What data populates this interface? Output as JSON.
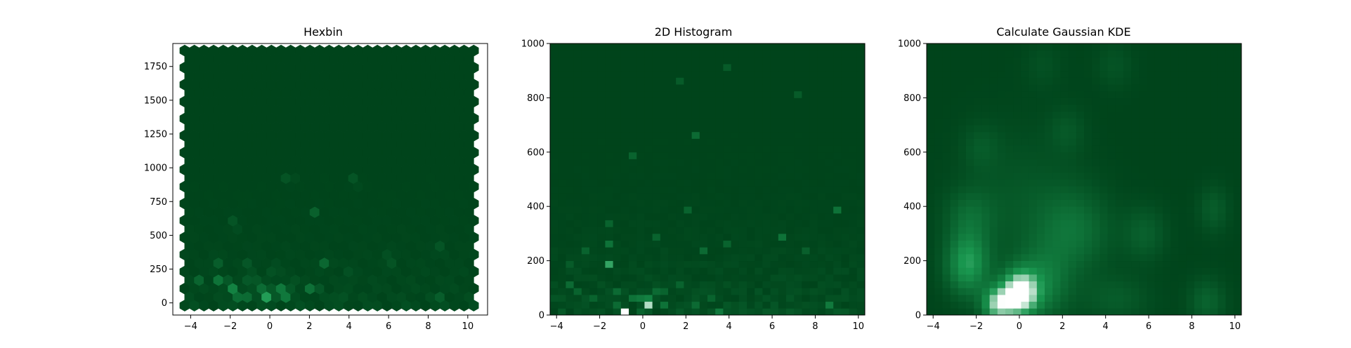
{
  "colors": {
    "background": "#ffffff",
    "cmap_base": "#00441b",
    "cmap_mid": "#1a9850",
    "cmap_high": "#ffffff",
    "axis": "#000000"
  },
  "chart_data": [
    {
      "type": "heatmap",
      "subtype": "hexbin",
      "title": "Hexbin",
      "xlabel": "",
      "ylabel": "",
      "xlim": [
        -4.9,
        11.0
      ],
      "ylim": [
        -90,
        1920
      ],
      "xticks": [
        -4,
        -2,
        0,
        2,
        4,
        6,
        8,
        10
      ],
      "yticks": [
        0,
        250,
        500,
        750,
        1000,
        1250,
        1500,
        1750
      ],
      "grid": false,
      "colormap": "Greens_r",
      "hex_extent_x": [
        -4.3,
        10.3
      ],
      "hex_extent_y": [
        -20,
        1840
      ],
      "hotspots": [
        {
          "x": 0.0,
          "y": 50,
          "intensity": 1.0
        },
        {
          "x": -0.2,
          "y": 90,
          "intensity": 0.75
        },
        {
          "x": -1.4,
          "y": 40,
          "intensity": 0.7
        },
        {
          "x": -2.4,
          "y": 160,
          "intensity": 0.7
        },
        {
          "x": -1.8,
          "y": 110,
          "intensity": 0.45
        },
        {
          "x": -0.9,
          "y": 170,
          "intensity": 0.4
        },
        {
          "x": -1.1,
          "y": 70,
          "intensity": 0.5
        },
        {
          "x": 0.7,
          "y": 50,
          "intensity": 0.45
        },
        {
          "x": 1.1,
          "y": 140,
          "intensity": 0.35
        },
        {
          "x": 2.0,
          "y": 120,
          "intensity": 0.35
        },
        {
          "x": 2.9,
          "y": 300,
          "intensity": 0.35
        },
        {
          "x": 2.3,
          "y": 110,
          "intensity": 0.3
        },
        {
          "x": -2.6,
          "y": 320,
          "intensity": 0.3
        },
        {
          "x": -1.8,
          "y": 580,
          "intensity": 0.25
        },
        {
          "x": 8.4,
          "y": 40,
          "intensity": 0.35
        },
        {
          "x": 6.0,
          "y": 320,
          "intensity": 0.3
        },
        {
          "x": 8.6,
          "y": 390,
          "intensity": 0.25
        },
        {
          "x": 2.2,
          "y": 670,
          "intensity": 0.2
        },
        {
          "x": 4.3,
          "y": 900,
          "intensity": 0.2
        },
        {
          "x": 1.0,
          "y": 920,
          "intensity": 0.2
        },
        {
          "x": -1.0,
          "y": 270,
          "intensity": 0.3
        },
        {
          "x": 0.3,
          "y": 250,
          "intensity": 0.3
        },
        {
          "x": -3.5,
          "y": 160,
          "intensity": 0.25
        },
        {
          "x": 3.5,
          "y": 50,
          "intensity": 0.25
        },
        {
          "x": 4.0,
          "y": 200,
          "intensity": 0.2
        },
        {
          "x": 0.5,
          "y": 120,
          "intensity": 0.45
        }
      ]
    },
    {
      "type": "heatmap",
      "subtype": "2d-histogram",
      "title": "2D Histogram",
      "xlabel": "",
      "ylabel": "",
      "xlim": [
        -4.3,
        10.3
      ],
      "ylim": [
        0,
        1000
      ],
      "xticks": [
        -4,
        -2,
        0,
        2,
        4,
        6,
        8,
        10
      ],
      "yticks": [
        0,
        200,
        400,
        600,
        800,
        1000
      ],
      "grid": false,
      "colormap": "Greens_r",
      "bins": [
        40,
        40
      ],
      "hot_cells": [
        {
          "col": 9,
          "row": 0,
          "intensity": 1.0
        },
        {
          "col": 12,
          "row": 1,
          "intensity": 0.85
        },
        {
          "col": 11,
          "row": 2,
          "intensity": 0.35
        },
        {
          "col": 12,
          "row": 2,
          "intensity": 0.4
        },
        {
          "col": 10,
          "row": 2,
          "intensity": 0.3
        },
        {
          "col": 7,
          "row": 7,
          "intensity": 0.6
        },
        {
          "col": 7,
          "row": 10,
          "intensity": 0.3
        },
        {
          "col": 8,
          "row": 1,
          "intensity": 0.25
        },
        {
          "col": 8,
          "row": 3,
          "intensity": 0.25
        },
        {
          "col": 2,
          "row": 4,
          "intensity": 0.25
        },
        {
          "col": 3,
          "row": 3,
          "intensity": 0.2
        },
        {
          "col": 5,
          "row": 2,
          "intensity": 0.2
        },
        {
          "col": 14,
          "row": 1,
          "intensity": 0.3
        },
        {
          "col": 14,
          "row": 3,
          "intensity": 0.2
        },
        {
          "col": 16,
          "row": 4,
          "intensity": 0.2
        },
        {
          "col": 18,
          "row": 1,
          "intensity": 0.25
        },
        {
          "col": 21,
          "row": 0,
          "intensity": 0.35
        },
        {
          "col": 20,
          "row": 2,
          "intensity": 0.2
        },
        {
          "col": 19,
          "row": 9,
          "intensity": 0.25
        },
        {
          "col": 18,
          "row": 26,
          "intensity": 0.25
        },
        {
          "col": 10,
          "row": 23,
          "intensity": 0.2
        },
        {
          "col": 29,
          "row": 11,
          "intensity": 0.3
        },
        {
          "col": 36,
          "row": 15,
          "intensity": 0.3
        },
        {
          "col": 35,
          "row": 1,
          "intensity": 0.35
        },
        {
          "col": 17,
          "row": 15,
          "intensity": 0.2
        },
        {
          "col": 7,
          "row": 13,
          "intensity": 0.2
        },
        {
          "col": 13,
          "row": 11,
          "intensity": 0.2
        },
        {
          "col": 4,
          "row": 9,
          "intensity": 0.2
        },
        {
          "col": 13,
          "row": 3,
          "intensity": 0.25
        },
        {
          "col": 11,
          "row": 0,
          "intensity": 0.2
        },
        {
          "col": 2,
          "row": 7,
          "intensity": 0.15
        },
        {
          "col": 22,
          "row": 10,
          "intensity": 0.2
        },
        {
          "col": 32,
          "row": 9,
          "intensity": 0.18
        },
        {
          "col": 31,
          "row": 32,
          "intensity": 0.15
        },
        {
          "col": 16,
          "row": 34,
          "intensity": 0.15
        },
        {
          "col": 22,
          "row": 36,
          "intensity": 0.15
        }
      ]
    },
    {
      "type": "heatmap",
      "subtype": "gaussian-kde",
      "title": "Calculate Gaussian KDE",
      "xlabel": "",
      "ylabel": "",
      "xlim": [
        -4.3,
        10.3
      ],
      "ylim": [
        0,
        1000
      ],
      "xticks": [
        -4,
        -2,
        0,
        2,
        4,
        6,
        8,
        10
      ],
      "yticks": [
        0,
        200,
        400,
        600,
        800,
        1000
      ],
      "grid": false,
      "colormap": "Greens_r",
      "grid_size": [
        40,
        40
      ],
      "kernels": [
        {
          "x": 0.0,
          "y": 80,
          "sx": 0.55,
          "sy": 55,
          "w": 1.0
        },
        {
          "x": -1.0,
          "y": 40,
          "sx": 0.5,
          "sy": 45,
          "w": 0.75
        },
        {
          "x": -2.4,
          "y": 190,
          "sx": 0.7,
          "sy": 80,
          "w": 0.55
        },
        {
          "x": 1.0,
          "y": 110,
          "sx": 0.9,
          "sy": 90,
          "w": 0.35
        },
        {
          "x": -2.3,
          "y": 370,
          "sx": 0.8,
          "sy": 70,
          "w": 0.2
        },
        {
          "x": 2.5,
          "y": 310,
          "sx": 1.2,
          "sy": 110,
          "w": 0.28
        },
        {
          "x": 5.8,
          "y": 300,
          "sx": 0.7,
          "sy": 70,
          "w": 0.18
        },
        {
          "x": 9.0,
          "y": 390,
          "sx": 0.5,
          "sy": 60,
          "w": 0.16
        },
        {
          "x": 8.7,
          "y": 50,
          "sx": 0.6,
          "sy": 60,
          "w": 0.2
        },
        {
          "x": 4.5,
          "y": 60,
          "sx": 1.1,
          "sy": 60,
          "w": 0.15
        },
        {
          "x": -1.8,
          "y": 620,
          "sx": 0.6,
          "sy": 60,
          "w": 0.12
        },
        {
          "x": 2.2,
          "y": 680,
          "sx": 0.6,
          "sy": 60,
          "w": 0.12
        },
        {
          "x": 4.4,
          "y": 920,
          "sx": 0.6,
          "sy": 60,
          "w": 0.1
        },
        {
          "x": 1.1,
          "y": 920,
          "sx": 0.6,
          "sy": 60,
          "w": 0.08
        },
        {
          "x": 0.0,
          "y": 420,
          "sx": 1.8,
          "sy": 180,
          "w": 0.12
        }
      ]
    }
  ]
}
